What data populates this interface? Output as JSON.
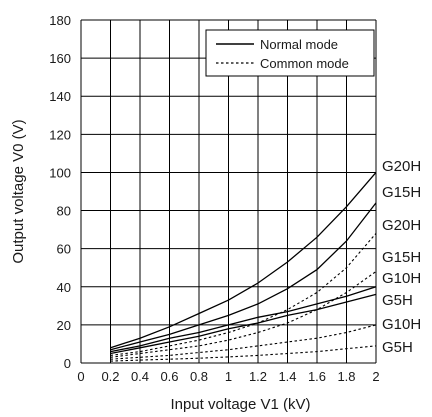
{
  "chart_data": {
    "type": "line",
    "xlabel": "Input voltage V1 (kV)",
    "ylabel": "Output voltage V0 (V)",
    "xlim": [
      0,
      2
    ],
    "ylim": [
      0,
      180
    ],
    "x_ticks": [
      "0",
      "0.2",
      "0.4",
      "0.6",
      "0.8",
      "1",
      "1.2",
      "1.4",
      "1.6",
      "1.8",
      "2"
    ],
    "y_ticks": [
      "0",
      "20",
      "40",
      "60",
      "80",
      "100",
      "120",
      "140",
      "160",
      "180"
    ],
    "grid": true,
    "legend": {
      "placement": "top-right",
      "entries": [
        {
          "label": "Normal mode",
          "style": "solid"
        },
        {
          "label": "Common mode",
          "style": "dotted"
        }
      ]
    },
    "series": [
      {
        "name": "G20H",
        "mode": "Normal mode",
        "style": "solid",
        "points": [
          [
            0.2,
            8
          ],
          [
            0.4,
            13
          ],
          [
            0.6,
            19
          ],
          [
            0.8,
            26
          ],
          [
            1.0,
            33
          ],
          [
            1.2,
            42
          ],
          [
            1.4,
            53
          ],
          [
            1.6,
            66
          ],
          [
            1.8,
            82
          ],
          [
            2.0,
            100
          ]
        ]
      },
      {
        "name": "G15H",
        "mode": "Normal mode",
        "style": "solid",
        "points": [
          [
            0.2,
            7
          ],
          [
            0.4,
            11
          ],
          [
            0.6,
            15
          ],
          [
            0.8,
            20
          ],
          [
            1.0,
            25
          ],
          [
            1.2,
            31
          ],
          [
            1.4,
            39
          ],
          [
            1.6,
            49
          ],
          [
            1.8,
            64
          ],
          [
            2.0,
            84
          ]
        ]
      },
      {
        "name": "G10H",
        "mode": "Normal mode",
        "style": "solid",
        "points": [
          [
            0.2,
            6
          ],
          [
            0.4,
            9
          ],
          [
            0.6,
            13
          ],
          [
            0.8,
            16
          ],
          [
            1.0,
            20
          ],
          [
            1.2,
            24
          ],
          [
            1.4,
            27
          ],
          [
            1.6,
            31
          ],
          [
            1.8,
            35
          ],
          [
            2.0,
            40
          ]
        ]
      },
      {
        "name": "G5H",
        "mode": "Normal mode",
        "style": "solid",
        "points": [
          [
            0.2,
            5
          ],
          [
            0.4,
            8
          ],
          [
            0.6,
            11
          ],
          [
            0.8,
            14
          ],
          [
            1.0,
            18
          ],
          [
            1.2,
            21
          ],
          [
            1.4,
            25
          ],
          [
            1.6,
            28
          ],
          [
            1.8,
            32
          ],
          [
            2.0,
            36
          ]
        ]
      },
      {
        "name": "G20H",
        "mode": "Common mode",
        "style": "dotted",
        "points": [
          [
            0.2,
            4
          ],
          [
            0.4,
            6
          ],
          [
            0.6,
            9
          ],
          [
            0.8,
            12
          ],
          [
            1.0,
            16
          ],
          [
            1.2,
            21
          ],
          [
            1.4,
            28
          ],
          [
            1.6,
            37
          ],
          [
            1.8,
            50
          ],
          [
            2.0,
            68
          ]
        ]
      },
      {
        "name": "G15H",
        "mode": "Common mode",
        "style": "dotted",
        "points": [
          [
            0.2,
            3
          ],
          [
            0.4,
            5
          ],
          [
            0.6,
            7
          ],
          [
            0.8,
            9
          ],
          [
            1.0,
            12
          ],
          [
            1.2,
            16
          ],
          [
            1.4,
            21
          ],
          [
            1.6,
            28
          ],
          [
            1.8,
            37
          ],
          [
            2.0,
            48
          ]
        ]
      },
      {
        "name": "G10H",
        "mode": "Common mode",
        "style": "dotted",
        "points": [
          [
            0.2,
            2
          ],
          [
            0.4,
            3
          ],
          [
            0.6,
            4
          ],
          [
            0.8,
            5.5
          ],
          [
            1.0,
            7
          ],
          [
            1.2,
            9
          ],
          [
            1.4,
            11
          ],
          [
            1.6,
            13
          ],
          [
            1.8,
            16
          ],
          [
            2.0,
            20
          ]
        ]
      },
      {
        "name": "G5H",
        "mode": "Common mode",
        "style": "dotted",
        "points": [
          [
            0.2,
            1
          ],
          [
            0.4,
            1.5
          ],
          [
            0.6,
            2
          ],
          [
            0.8,
            2.5
          ],
          [
            1.0,
            3.2
          ],
          [
            1.2,
            4
          ],
          [
            1.4,
            5
          ],
          [
            1.6,
            6
          ],
          [
            1.8,
            7.5
          ],
          [
            2.0,
            9
          ]
        ]
      }
    ]
  }
}
